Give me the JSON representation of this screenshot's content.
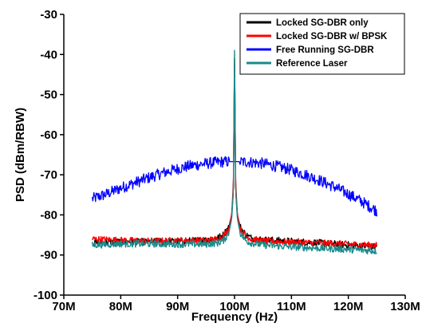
{
  "chart_data": {
    "type": "line",
    "xlabel": "Frequency (Hz)",
    "ylabel": "PSD (dBm/RBW)",
    "x_unit": "MHz",
    "xlim": [
      70,
      130
    ],
    "ylim": [
      -100,
      -30
    ],
    "x_ticks": [
      70,
      80,
      90,
      100,
      110,
      120,
      130
    ],
    "x_tick_labels": [
      "70M",
      "80M",
      "90M",
      "100M",
      "110M",
      "120M",
      "130M"
    ],
    "y_ticks": [
      -100,
      -90,
      -80,
      -70,
      -60,
      -50,
      -40,
      -30
    ],
    "y_tick_labels": [
      "-100",
      "-90",
      "-80",
      "-70",
      "-60",
      "-50",
      "-40",
      "-30"
    ],
    "grid": false,
    "legend_position": "top-right",
    "series": [
      {
        "name": "Locked SG-DBR only",
        "color": "#000000",
        "x": [
          75,
          80,
          85,
          90,
          95,
          97,
          98,
          99,
          99.5,
          99.8,
          100,
          100.2,
          100.5,
          101,
          102,
          103,
          105,
          110,
          115,
          120,
          125
        ],
        "y": [
          -87,
          -86.7,
          -86.7,
          -86.6,
          -86.3,
          -85.8,
          -85,
          -83,
          -80,
          -74,
          -41,
          -74,
          -80,
          -83,
          -85,
          -85.8,
          -86.2,
          -86.6,
          -87,
          -87.5,
          -88
        ]
      },
      {
        "name": "Locked SG-DBR w/ BPSK",
        "color": "#ff0000",
        "x": [
          75,
          80,
          85,
          90,
          95,
          97,
          98,
          99,
          99.5,
          99.8,
          100,
          100.2,
          100.5,
          101,
          102,
          103,
          105,
          110,
          115,
          120,
          125
        ],
        "y": [
          -86,
          -86.3,
          -86.5,
          -86.4,
          -86.3,
          -86,
          -85.3,
          -83.5,
          -80,
          -72,
          -42,
          -72,
          -80,
          -83.5,
          -85.3,
          -86,
          -86.5,
          -86.8,
          -87,
          -87.3,
          -87.6
        ]
      },
      {
        "name": "Free Running SG-DBR",
        "color": "#0000ff",
        "x": [
          75,
          77.5,
          80,
          82.5,
          85,
          87.5,
          90,
          92.5,
          95,
          97.5,
          100,
          102.5,
          105,
          107.5,
          110,
          112.5,
          115,
          117.5,
          120,
          122.5,
          125
        ],
        "y": [
          -76,
          -74.8,
          -73.3,
          -72,
          -70.7,
          -69.5,
          -68.5,
          -67.7,
          -67.2,
          -66.8,
          -66.7,
          -66.8,
          -67.2,
          -67.9,
          -68.8,
          -70,
          -71.4,
          -73,
          -74.8,
          -76.8,
          -79
        ]
      },
      {
        "name": "Reference Laser",
        "color": "#1a8a8a",
        "x": [
          75,
          80,
          85,
          90,
          95,
          97,
          98,
          99,
          99.5,
          99.8,
          100,
          100.2,
          100.5,
          101,
          102,
          103,
          105,
          110,
          115,
          120,
          125
        ],
        "y": [
          -87.5,
          -87.2,
          -87.2,
          -87.3,
          -87.3,
          -87,
          -86.5,
          -84.5,
          -81,
          -74,
          -39,
          -74,
          -81,
          -84.5,
          -86.5,
          -87,
          -87.5,
          -88,
          -88.3,
          -88.6,
          -89
        ]
      }
    ]
  }
}
